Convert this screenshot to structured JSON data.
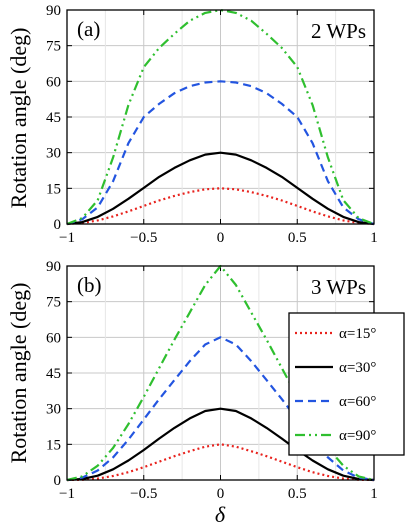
{
  "chart_data": [
    {
      "type": "line",
      "panel_label": "(a)",
      "annotation": "2 WPs",
      "ylabel": "Rotation angle (deg)",
      "xlabel": "",
      "xlim": [
        -1,
        1
      ],
      "ylim": [
        0,
        90
      ],
      "xticks": [
        -1,
        -0.5,
        0,
        0.5,
        1
      ],
      "xtick_labels": [
        "−1",
        "−0.5",
        "0",
        "0.5",
        "1"
      ],
      "yticks": [
        0,
        15,
        30,
        45,
        60,
        75,
        90
      ],
      "ytick_labels": [
        "0",
        "15",
        "30",
        "45",
        "60",
        "75",
        "90"
      ],
      "grid": true,
      "legend": false,
      "x": [
        -1,
        -0.9,
        -0.8,
        -0.7,
        -0.6,
        -0.5,
        -0.4,
        -0.3,
        -0.2,
        -0.1,
        0,
        0.1,
        0.2,
        0.3,
        0.4,
        0.5,
        0.6,
        0.7,
        0.8,
        0.9,
        1
      ],
      "series": [
        {
          "label": "α=15°",
          "color": "#e8221d",
          "dash": "dot",
          "values": [
            0,
            0.4,
            1.5,
            3.2,
            5.3,
            7.6,
            9.9,
            11.8,
            13.4,
            14.6,
            15,
            14.6,
            13.4,
            11.8,
            9.9,
            7.6,
            5.3,
            3.2,
            1.5,
            0.4,
            0
          ]
        },
        {
          "label": "α=30°",
          "color": "#000000",
          "dash": "solid",
          "values": [
            0,
            0.8,
            3.0,
            6.4,
            10.6,
            15.2,
            19.8,
            23.6,
            26.8,
            29.2,
            30,
            29.2,
            26.8,
            23.6,
            19.8,
            15.2,
            10.6,
            6.4,
            3.0,
            0.8,
            0
          ]
        },
        {
          "label": "α=60°",
          "color": "#2355e0",
          "dash": "dash",
          "values": [
            0,
            2.0,
            7.0,
            18.0,
            34.0,
            45.0,
            50.5,
            55.0,
            58.0,
            59.5,
            60,
            59.5,
            58.0,
            55.0,
            50.5,
            45.0,
            34.0,
            18.0,
            7.0,
            2.0,
            0
          ]
        },
        {
          "label": "α=90°",
          "color": "#2fbf2f",
          "dash": "dashdotdot",
          "values": [
            0,
            2.5,
            10.0,
            28.0,
            50.0,
            66.0,
            74.0,
            80.0,
            85.5,
            88.8,
            90,
            88.8,
            85.5,
            80.0,
            74.0,
            66.0,
            50.0,
            28.0,
            10.0,
            2.5,
            0
          ]
        }
      ]
    },
    {
      "type": "line",
      "panel_label": "(b)",
      "annotation": "3 WPs",
      "ylabel": "Rotation angle (deg)",
      "xlabel": "δ",
      "xlim": [
        -1,
        1
      ],
      "ylim": [
        0,
        90
      ],
      "xticks": [
        -1,
        -0.5,
        0,
        0.5,
        1
      ],
      "xtick_labels": [
        "−1",
        "−0.5",
        "0",
        "0.5",
        "1"
      ],
      "yticks": [
        0,
        15,
        30,
        45,
        60,
        75,
        90
      ],
      "ytick_labels": [
        "0",
        "15",
        "30",
        "45",
        "60",
        "75",
        "90"
      ],
      "grid": true,
      "legend": true,
      "legend_position": "right",
      "x": [
        -1,
        -0.9,
        -0.8,
        -0.7,
        -0.6,
        -0.5,
        -0.4,
        -0.3,
        -0.2,
        -0.1,
        0,
        0.1,
        0.2,
        0.3,
        0.4,
        0.5,
        0.6,
        0.7,
        0.8,
        0.9,
        1
      ],
      "series": [
        {
          "label": "α=15°",
          "color": "#e8221d",
          "dash": "dot",
          "values": [
            0,
            0.1,
            0.6,
            1.7,
            3.3,
            5.4,
            7.7,
            10.0,
            12.1,
            14.0,
            15,
            14.0,
            12.1,
            10.0,
            7.7,
            5.4,
            3.3,
            1.7,
            0.6,
            0.1,
            0
          ]
        },
        {
          "label": "α=30°",
          "color": "#000000",
          "dash": "solid",
          "values": [
            0,
            0.4,
            1.8,
            4.5,
            8.2,
            12.6,
            17.4,
            21.9,
            25.9,
            29.0,
            30,
            29.0,
            25.9,
            21.9,
            17.4,
            12.6,
            8.2,
            4.5,
            1.8,
            0.4,
            0
          ]
        },
        {
          "label": "α=60°",
          "color": "#2355e0",
          "dash": "dash",
          "values": [
            0,
            1.0,
            4.0,
            9.5,
            17.0,
            25.5,
            34.0,
            42.0,
            50.0,
            57.0,
            60,
            57.0,
            50.0,
            42.0,
            34.0,
            25.5,
            17.0,
            9.5,
            4.0,
            1.0,
            0
          ]
        },
        {
          "label": "α=90°",
          "color": "#2fbf2f",
          "dash": "dashdotdot",
          "values": [
            0,
            1.5,
            6.0,
            13.5,
            23.5,
            35.0,
            47.0,
            59.0,
            70.5,
            82.0,
            90,
            82.0,
            70.5,
            59.0,
            47.0,
            35.0,
            23.5,
            13.5,
            6.0,
            1.5,
            0
          ]
        }
      ]
    }
  ]
}
